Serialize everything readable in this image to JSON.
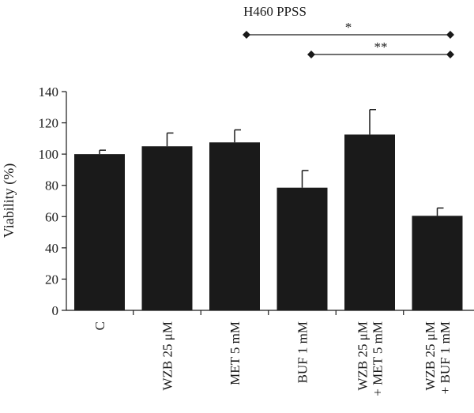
{
  "chart_data": {
    "type": "bar",
    "title": "H460 PPSS",
    "ylabel": "Viability (%)",
    "xlabel": "",
    "ylim": [
      0,
      140
    ],
    "yticks": [
      0,
      20,
      40,
      60,
      80,
      100,
      120,
      140
    ],
    "categories": [
      [
        "C"
      ],
      [
        "WZB 25 μM"
      ],
      [
        "MET 5 mM"
      ],
      [
        "BUF 1 mM"
      ],
      [
        "WZB 25 μM",
        "+ MET 5 mM"
      ],
      [
        "WZB 25 μM",
        "+ BUF 1 mM"
      ]
    ],
    "values": [
      100,
      105,
      107.5,
      78.5,
      112.5,
      60.5
    ],
    "errors": [
      2.5,
      8.5,
      8,
      11,
      16,
      5
    ],
    "bar_color": "#1a1a1a",
    "significance": [
      {
        "from": 2,
        "to": 5,
        "label": "*"
      },
      {
        "from": 3,
        "to": 5,
        "label": "**"
      }
    ]
  }
}
